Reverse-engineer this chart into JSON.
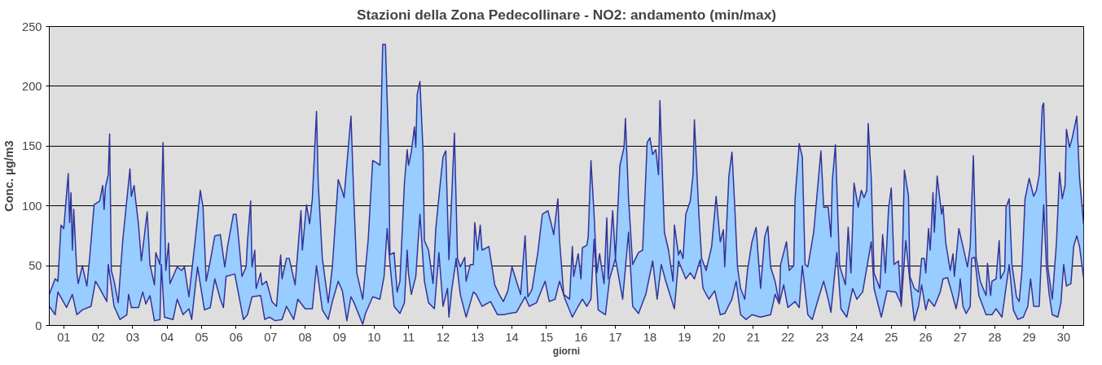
{
  "chart_data": {
    "type": "line",
    "title": "Stazioni della Zona Pedecollinare - NO2: andamento (min/max)",
    "xlabel": "giorni",
    "ylabel": "Conc. µg/m3",
    "xlim": [
      0.58,
      30.58
    ],
    "ylim": [
      0,
      250
    ],
    "yticks": [
      0,
      50,
      100,
      150,
      200,
      250
    ],
    "xticks": [
      {
        "value": 1,
        "label": "01"
      },
      {
        "value": 2,
        "label": "02"
      },
      {
        "value": 3,
        "label": "03"
      },
      {
        "value": 4,
        "label": "04"
      },
      {
        "value": 5,
        "label": "05"
      },
      {
        "value": 6,
        "label": "06"
      },
      {
        "value": 7,
        "label": "07"
      },
      {
        "value": 8,
        "label": "08"
      },
      {
        "value": 9,
        "label": "09"
      },
      10,
      11,
      12,
      13,
      14,
      15,
      16,
      17,
      18,
      19,
      20,
      21,
      22,
      23,
      24,
      25,
      26,
      27,
      28,
      29,
      30
    ],
    "grid": "y",
    "series": [
      {
        "type": "area",
        "color": "#333399",
        "x": [
          0.58,
          0.75,
          0.83,
          0.92,
          1.0,
          1.13,
          1.17,
          1.21,
          1.25,
          1.29,
          1.38,
          1.42,
          1.54,
          1.67,
          1.75,
          1.88,
          2.04,
          2.13,
          2.17,
          2.21,
          2.29,
          2.33,
          2.38,
          2.46,
          2.58,
          2.71,
          2.92,
          2.96,
          3.04,
          3.08,
          3.17,
          3.25,
          3.42,
          3.5,
          3.63,
          3.67,
          3.79,
          3.88,
          3.96,
          4.04,
          4.08,
          4.29,
          4.42,
          4.5,
          4.63,
          4.83,
          4.96,
          5.04,
          5.13,
          5.25,
          5.38,
          5.54,
          5.67,
          5.75,
          5.92,
          6.0,
          6.08,
          6.17,
          6.29,
          6.33,
          6.42,
          6.46,
          6.54,
          6.58,
          6.71,
          6.75,
          6.88,
          7.04,
          7.17,
          7.29,
          7.33,
          7.46,
          7.54,
          7.71,
          7.88,
          7.92,
          8.04,
          8.13,
          8.21,
          8.33,
          8.38,
          8.5,
          8.67,
          8.79,
          8.96,
          9.08,
          9.13,
          9.33,
          9.42,
          9.5,
          9.67,
          9.83,
          9.96,
          10.08,
          10.17,
          10.25,
          10.33,
          10.42,
          10.46,
          10.58,
          10.67,
          10.75,
          10.88,
          10.96,
          11.0,
          11.08,
          11.17,
          11.21,
          11.25,
          11.33,
          11.42,
          11.46,
          11.58,
          11.71,
          11.79,
          11.92,
          12.0,
          12.08,
          12.17,
          12.25,
          12.33,
          12.42,
          12.5,
          12.63,
          12.67,
          12.79,
          12.88,
          12.92,
          13.0,
          13.08,
          13.13,
          13.33,
          13.5,
          13.63,
          13.75,
          13.88,
          14.0,
          14.13,
          14.25,
          14.38,
          14.46,
          14.58,
          14.75,
          14.88,
          15.04,
          15.13,
          15.21,
          15.33,
          15.38,
          15.5,
          15.67,
          15.75,
          15.79,
          15.92,
          16.0,
          16.04,
          16.17,
          16.21,
          16.29,
          16.38,
          16.46,
          16.54,
          16.67,
          16.75,
          16.79,
          16.92,
          17.0,
          17.13,
          17.25,
          17.29,
          17.38,
          17.5,
          17.67,
          17.79,
          17.92,
          18.0,
          18.08,
          18.17,
          18.25,
          18.29,
          18.42,
          18.54,
          18.67,
          18.71,
          18.83,
          18.88,
          18.96,
          19.04,
          19.17,
          19.25,
          19.29,
          19.42,
          19.5,
          19.63,
          19.79,
          19.92,
          20.04,
          20.13,
          20.17,
          20.29,
          20.38,
          20.46,
          20.54,
          20.63,
          20.75,
          20.83,
          20.96,
          21.08,
          21.21,
          21.33,
          21.42,
          21.5,
          21.63,
          21.75,
          21.79,
          21.96,
          22.04,
          22.17,
          22.21,
          22.33,
          22.42,
          22.5,
          22.58,
          22.75,
          22.96,
          23.04,
          23.17,
          23.25,
          23.29,
          23.38,
          23.5,
          23.67,
          23.75,
          23.83,
          23.92,
          24.04,
          24.13,
          24.21,
          24.29,
          24.33,
          24.42,
          24.5,
          24.67,
          24.75,
          24.83,
          24.92,
          25.0,
          25.08,
          25.21,
          25.29,
          25.38,
          25.5,
          25.54,
          25.67,
          25.79,
          25.88,
          25.96,
          26.0,
          26.08,
          26.13,
          26.21,
          26.25,
          26.33,
          26.46,
          26.5,
          26.58,
          26.71,
          26.79,
          26.83,
          26.96,
          27.08,
          27.21,
          27.29,
          27.38,
          27.46,
          27.58,
          27.75,
          27.79,
          27.88,
          27.92,
          28.04,
          28.13,
          28.17,
          28.29,
          28.33,
          28.42,
          28.5,
          28.63,
          28.71,
          28.79,
          28.88,
          29.0,
          29.13,
          29.21,
          29.29,
          29.38,
          29.42,
          29.5,
          29.54,
          29.67,
          29.79,
          29.88,
          29.96,
          30.04,
          30.08,
          30.17,
          30.25,
          30.38,
          30.46,
          30.58
        ],
        "values": [
          26,
          39,
          37,
          84,
          81,
          127,
          86,
          111,
          63,
          97,
          44,
          35,
          50,
          33,
          56,
          101,
          104,
          117,
          97,
          116,
          126,
          160,
          46,
          37,
          19,
          71,
          131,
          108,
          117,
          106,
          84,
          54,
          95,
          51,
          34,
          61,
          51,
          153,
          46,
          69,
          35,
          49,
          46,
          49,
          24,
          76,
          113,
          99,
          37,
          54,
          75,
          76,
          49,
          66,
          93,
          93,
          70,
          41,
          49,
          71,
          104,
          49,
          63,
          31,
          44,
          34,
          37,
          20,
          16,
          59,
          39,
          56,
          56,
          34,
          96,
          63,
          101,
          85,
          106,
          179,
          119,
          56,
          19,
          49,
          122,
          112,
          107,
          175,
          101,
          44,
          22,
          72,
          138,
          136,
          134,
          235,
          235,
          151,
          59,
          61,
          28,
          37,
          119,
          147,
          134,
          145,
          166,
          149,
          193,
          204,
          146,
          71,
          63,
          35,
          81,
          119,
          141,
          146,
          55,
          106,
          161,
          56,
          49,
          57,
          37,
          51,
          51,
          86,
          63,
          84,
          63,
          66,
          34,
          26,
          20,
          29,
          49,
          37,
          26,
          75,
          24,
          30,
          61,
          93,
          96,
          86,
          76,
          106,
          71,
          26,
          22,
          66,
          41,
          60,
          39,
          65,
          67,
          74,
          138,
          93,
          44,
          60,
          35,
          90,
          39,
          96,
          56,
          134,
          149,
          173,
          106,
          51,
          61,
          63,
          153,
          157,
          143,
          147,
          126,
          188,
          78,
          63,
          37,
          84,
          59,
          63,
          56,
          93,
          104,
          126,
          172,
          93,
          56,
          46,
          66,
          108,
          70,
          80,
          49,
          125,
          145,
          100,
          49,
          31,
          22,
          46,
          70,
          82,
          31,
          74,
          83,
          49,
          37,
          19,
          51,
          70,
          46,
          50,
          106,
          152,
          141,
          51,
          49,
          78,
          146,
          99,
          99,
          74,
          121,
          151,
          50,
          34,
          82,
          44,
          119,
          99,
          113,
          107,
          113,
          169,
          123,
          44,
          31,
          76,
          44,
          97,
          115,
          51,
          54,
          16,
          130,
          108,
          41,
          31,
          28,
          56,
          56,
          44,
          81,
          63,
          111,
          78,
          125,
          93,
          100,
          69,
          46,
          60,
          41,
          81,
          66,
          49,
          66,
          142,
          57,
          37,
          25,
          52,
          25,
          37,
          39,
          71,
          39,
          46,
          99,
          106,
          51,
          24,
          20,
          46,
          106,
          123,
          108,
          113,
          126,
          183,
          186,
          101,
          49,
          22,
          69,
          128,
          106,
          117,
          164,
          149,
          157,
          175,
          123,
          84
        ]
      },
      {
        "color": "#333399",
        "x": [
          0.58,
          0.75,
          0.83,
          1.08,
          1.25,
          1.38,
          1.54,
          1.79,
          1.92,
          2.04,
          2.25,
          2.29,
          2.46,
          2.63,
          2.83,
          2.88,
          2.96,
          3.17,
          3.29,
          3.38,
          3.5,
          3.63,
          3.79,
          3.83,
          3.92,
          4.17,
          4.29,
          4.46,
          4.63,
          4.71,
          4.88,
          5.08,
          5.25,
          5.38,
          5.54,
          5.63,
          5.71,
          5.96,
          6.21,
          6.33,
          6.46,
          6.71,
          6.83,
          6.96,
          7.13,
          7.33,
          7.46,
          7.67,
          7.79,
          8.0,
          8.21,
          8.33,
          8.5,
          8.67,
          8.79,
          8.96,
          9.08,
          9.21,
          9.33,
          9.42,
          9.67,
          9.75,
          9.96,
          10.17,
          10.29,
          10.38,
          10.46,
          10.58,
          10.75,
          10.88,
          10.96,
          11.0,
          11.08,
          11.21,
          11.33,
          11.46,
          11.58,
          11.75,
          11.88,
          12.0,
          12.13,
          12.17,
          12.25,
          12.38,
          12.5,
          12.67,
          12.88,
          12.96,
          13.13,
          13.38,
          13.58,
          13.75,
          13.92,
          14.13,
          14.38,
          14.5,
          14.71,
          14.96,
          15.08,
          15.25,
          15.38,
          15.54,
          15.75,
          15.92,
          16.04,
          16.17,
          16.29,
          16.38,
          16.5,
          16.71,
          16.83,
          17.0,
          17.21,
          17.38,
          17.5,
          17.67,
          17.88,
          18.08,
          18.21,
          18.33,
          18.46,
          18.71,
          18.83,
          19.04,
          19.17,
          19.29,
          19.46,
          19.54,
          19.71,
          19.88,
          20.04,
          20.17,
          20.38,
          20.5,
          20.63,
          20.79,
          20.96,
          21.21,
          21.5,
          21.63,
          21.75,
          21.88,
          22.0,
          22.21,
          22.33,
          22.42,
          22.58,
          22.71,
          22.88,
          23.04,
          23.17,
          23.25,
          23.42,
          23.54,
          23.71,
          23.88,
          24.0,
          24.17,
          24.42,
          24.5,
          24.71,
          24.88,
          25.13,
          25.29,
          25.42,
          25.54,
          25.67,
          25.79,
          25.88,
          26.0,
          26.08,
          26.25,
          26.42,
          26.5,
          26.63,
          26.75,
          26.88,
          26.96,
          27.0,
          27.08,
          27.17,
          27.29,
          27.33,
          27.42,
          27.54,
          27.75,
          27.92,
          28.04,
          28.21,
          28.42,
          28.46,
          28.54,
          28.67,
          28.83,
          28.96,
          29.04,
          29.13,
          29.29,
          29.42,
          29.5,
          29.58,
          29.67,
          29.83,
          29.92,
          30.0,
          30.08,
          30.21,
          30.29,
          30.38,
          30.46,
          30.58
        ],
        "values": [
          16,
          9,
          28,
          15,
          26,
          9,
          13,
          16,
          37,
          31,
          20,
          51,
          16,
          5,
          9,
          26,
          15,
          15,
          28,
          18,
          25,
          4,
          5,
          51,
          7,
          5,
          22,
          9,
          14,
          5,
          49,
          13,
          15,
          39,
          22,
          15,
          41,
          43,
          5,
          9,
          24,
          25,
          5,
          7,
          4,
          5,
          16,
          5,
          22,
          14,
          14,
          50,
          13,
          5,
          20,
          37,
          29,
          4,
          24,
          19,
          1,
          10,
          24,
          22,
          41,
          81,
          52,
          16,
          10,
          19,
          63,
          43,
          26,
          41,
          93,
          37,
          19,
          14,
          61,
          16,
          31,
          7,
          29,
          56,
          26,
          7,
          28,
          26,
          16,
          20,
          9,
          9,
          10,
          11,
          24,
          16,
          19,
          37,
          20,
          22,
          37,
          22,
          7,
          16,
          22,
          16,
          22,
          72,
          13,
          9,
          39,
          56,
          22,
          78,
          16,
          10,
          26,
          54,
          22,
          51,
          37,
          14,
          54,
          39,
          44,
          39,
          55,
          31,
          22,
          29,
          9,
          10,
          22,
          37,
          9,
          5,
          9,
          7,
          9,
          26,
          18,
          34,
          15,
          20,
          15,
          50,
          9,
          5,
          22,
          37,
          22,
          11,
          61,
          14,
          7,
          31,
          22,
          28,
          70,
          31,
          7,
          29,
          28,
          18,
          71,
          37,
          4,
          16,
          34,
          13,
          22,
          16,
          28,
          39,
          40,
          28,
          14,
          26,
          39,
          16,
          10,
          16,
          56,
          57,
          25,
          9,
          9,
          14,
          7,
          51,
          39,
          13,
          5,
          7,
          16,
          39,
          16,
          16,
          101,
          49,
          26,
          9,
          7,
          19,
          51,
          33,
          35,
          66,
          75,
          66,
          39
        ]
      }
    ]
  }
}
